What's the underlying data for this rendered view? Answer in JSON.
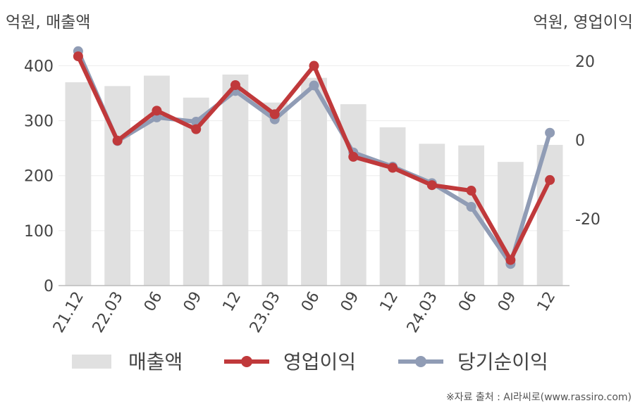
{
  "chart_data": {
    "type": "bar+line",
    "left_unit": "억원, 매출액",
    "right_unit": "억원, 영업이익",
    "categories": [
      "21.12",
      "22.03",
      "06",
      "09",
      "12",
      "23.03",
      "06",
      "09",
      "12",
      "24.03",
      "06",
      "09",
      "12"
    ],
    "left_axis": {
      "ticks": [
        0,
        100,
        200,
        300,
        400
      ],
      "ylim": [
        0,
        430
      ]
    },
    "right_axis": {
      "ticks": [
        20,
        0,
        -20
      ],
      "ylim": [
        -37,
        23
      ]
    },
    "series": [
      {
        "name": "매출액",
        "type": "bar",
        "axis": "left",
        "color": "#e0e0e0",
        "values": [
          370,
          363,
          382,
          342,
          384,
          333,
          378,
          330,
          288,
          258,
          255,
          225,
          256
        ]
      },
      {
        "name": "영업이익",
        "type": "line",
        "axis": "right",
        "color": "#c0393b",
        "values": [
          21.2,
          -0.2,
          7.4,
          2.7,
          13.9,
          6.5,
          18.8,
          -4.3,
          -7.1,
          -11.5,
          -12.9,
          -30.5,
          -10.2
        ]
      },
      {
        "name": "당기순이익",
        "type": "line",
        "axis": "right",
        "color": "#909cb5",
        "values": [
          22.5,
          -0.3,
          5.7,
          4.6,
          12.4,
          5.2,
          13.8,
          -3.2,
          -6.8,
          -11.0,
          -17.0,
          -31.5,
          1.8
        ]
      }
    ],
    "grid": true,
    "legend": "bottom"
  },
  "source_text": "※자료 출처 : AI라씨로(www.rassiro.com)"
}
